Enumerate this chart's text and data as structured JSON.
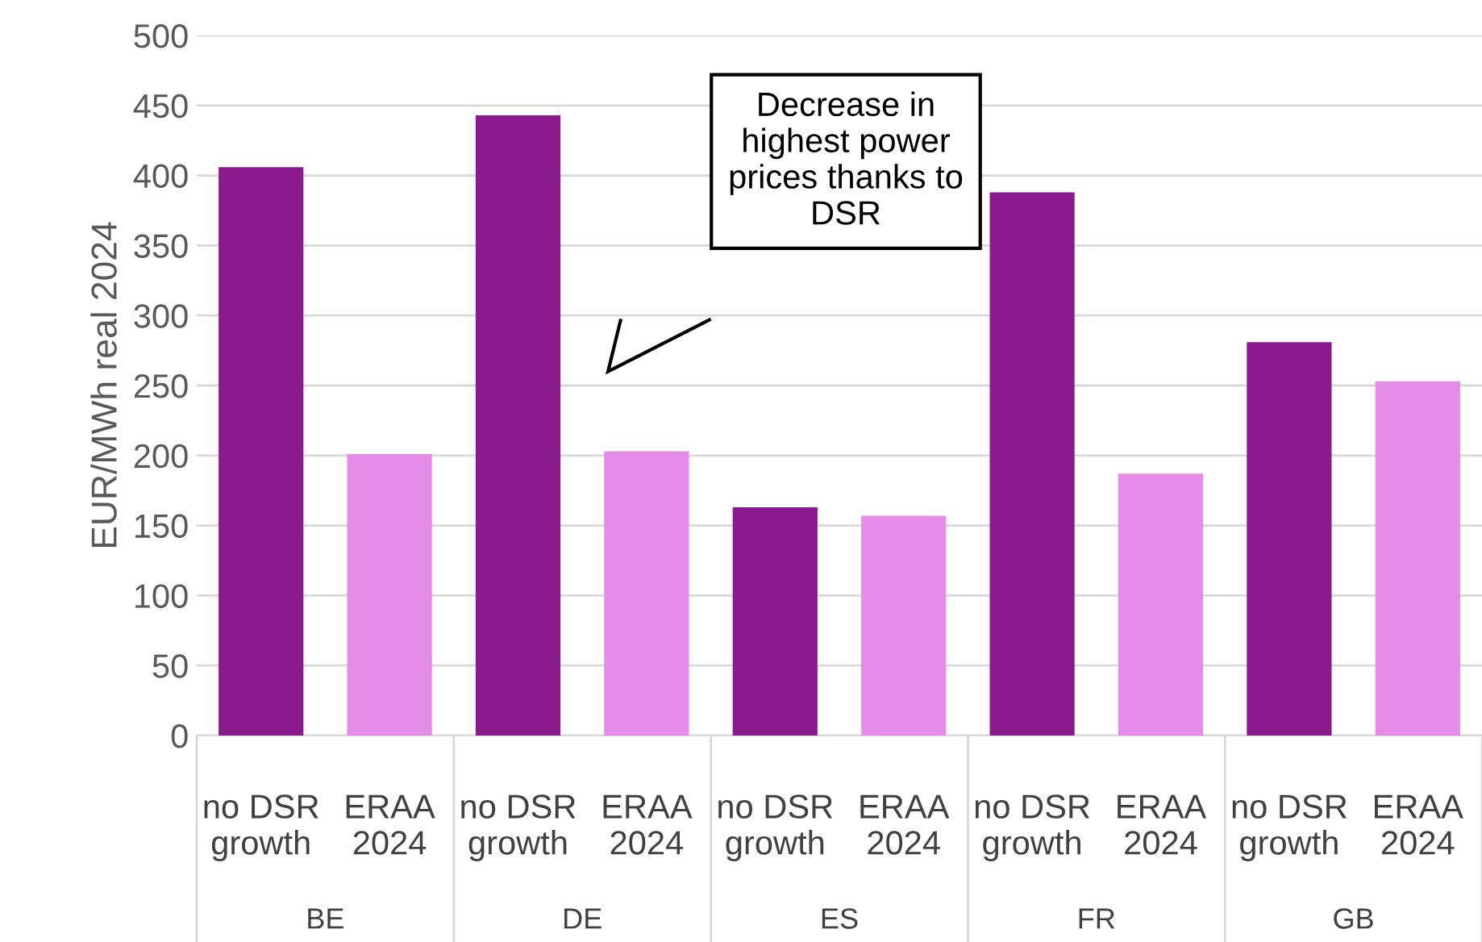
{
  "chart_data": {
    "type": "bar",
    "ylabel": "EUR/MWh real 2024",
    "categories": [
      "no DSR\ngrowth",
      "ERAA\n2024",
      "no DSR\ngrowth",
      "ERAA\n2024",
      "no DSR\ngrowth",
      "ERAA\n2024",
      "no DSR\ngrowth",
      "ERAA\n2024",
      "no DSR\ngrowth",
      "ERAA\n2024"
    ],
    "values": [
      406,
      201,
      443,
      203,
      163,
      157,
      388,
      187,
      281,
      253
    ],
    "colors": [
      "#8b1a8f",
      "#e58be8",
      "#8b1a8f",
      "#e58be8",
      "#8b1a8f",
      "#e58be8",
      "#8b1a8f",
      "#e58be8",
      "#8b1a8f",
      "#e58be8"
    ],
    "ylim": [
      0,
      500
    ],
    "yticks": [
      0,
      50,
      100,
      150,
      200,
      250,
      300,
      350,
      400,
      450,
      500
    ],
    "grid": "y",
    "annotations": [
      "Decrease in\nhighest power\nprices thanks to\nDSR",
      "BE",
      "DE",
      "ES",
      "FR",
      "GB"
    ]
  }
}
